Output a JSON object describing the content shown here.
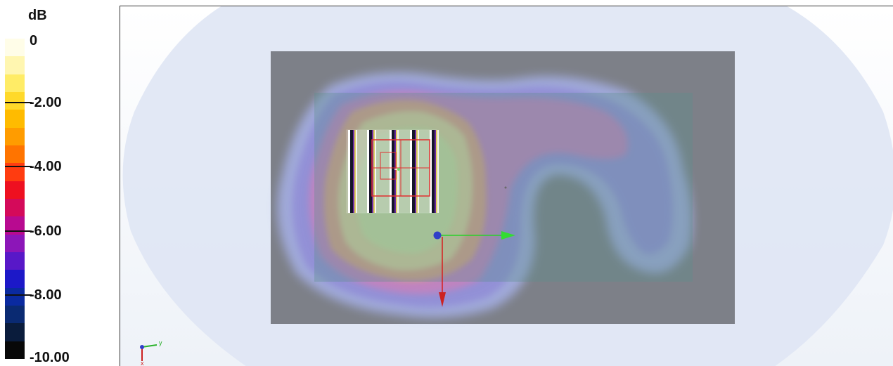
{
  "legend": {
    "unit": "dB",
    "colors": [
      "#fffde8",
      "#fff6b0",
      "#ffec66",
      "#ffd92a",
      "#ffbb00",
      "#ff9c00",
      "#ff7400",
      "#ff3c10",
      "#ee1020",
      "#d40a5a",
      "#b80a90",
      "#8c16b8",
      "#5818c8",
      "#1c18c8",
      "#0a2aa0",
      "#0a2a72",
      "#0a1c3c",
      "#080808"
    ],
    "ticks": [
      {
        "label": "0",
        "value": 0
      },
      {
        "label": "-2.00",
        "value": -2
      },
      {
        "label": "-4.00",
        "value": -4
      },
      {
        "label": "-6.00",
        "value": -6
      },
      {
        "label": "-8.00",
        "value": -8
      },
      {
        "label": "-10.00",
        "value": -10
      }
    ]
  },
  "viewport": {
    "axis_triad": {
      "y_label": "y",
      "x_label": "x"
    }
  }
}
